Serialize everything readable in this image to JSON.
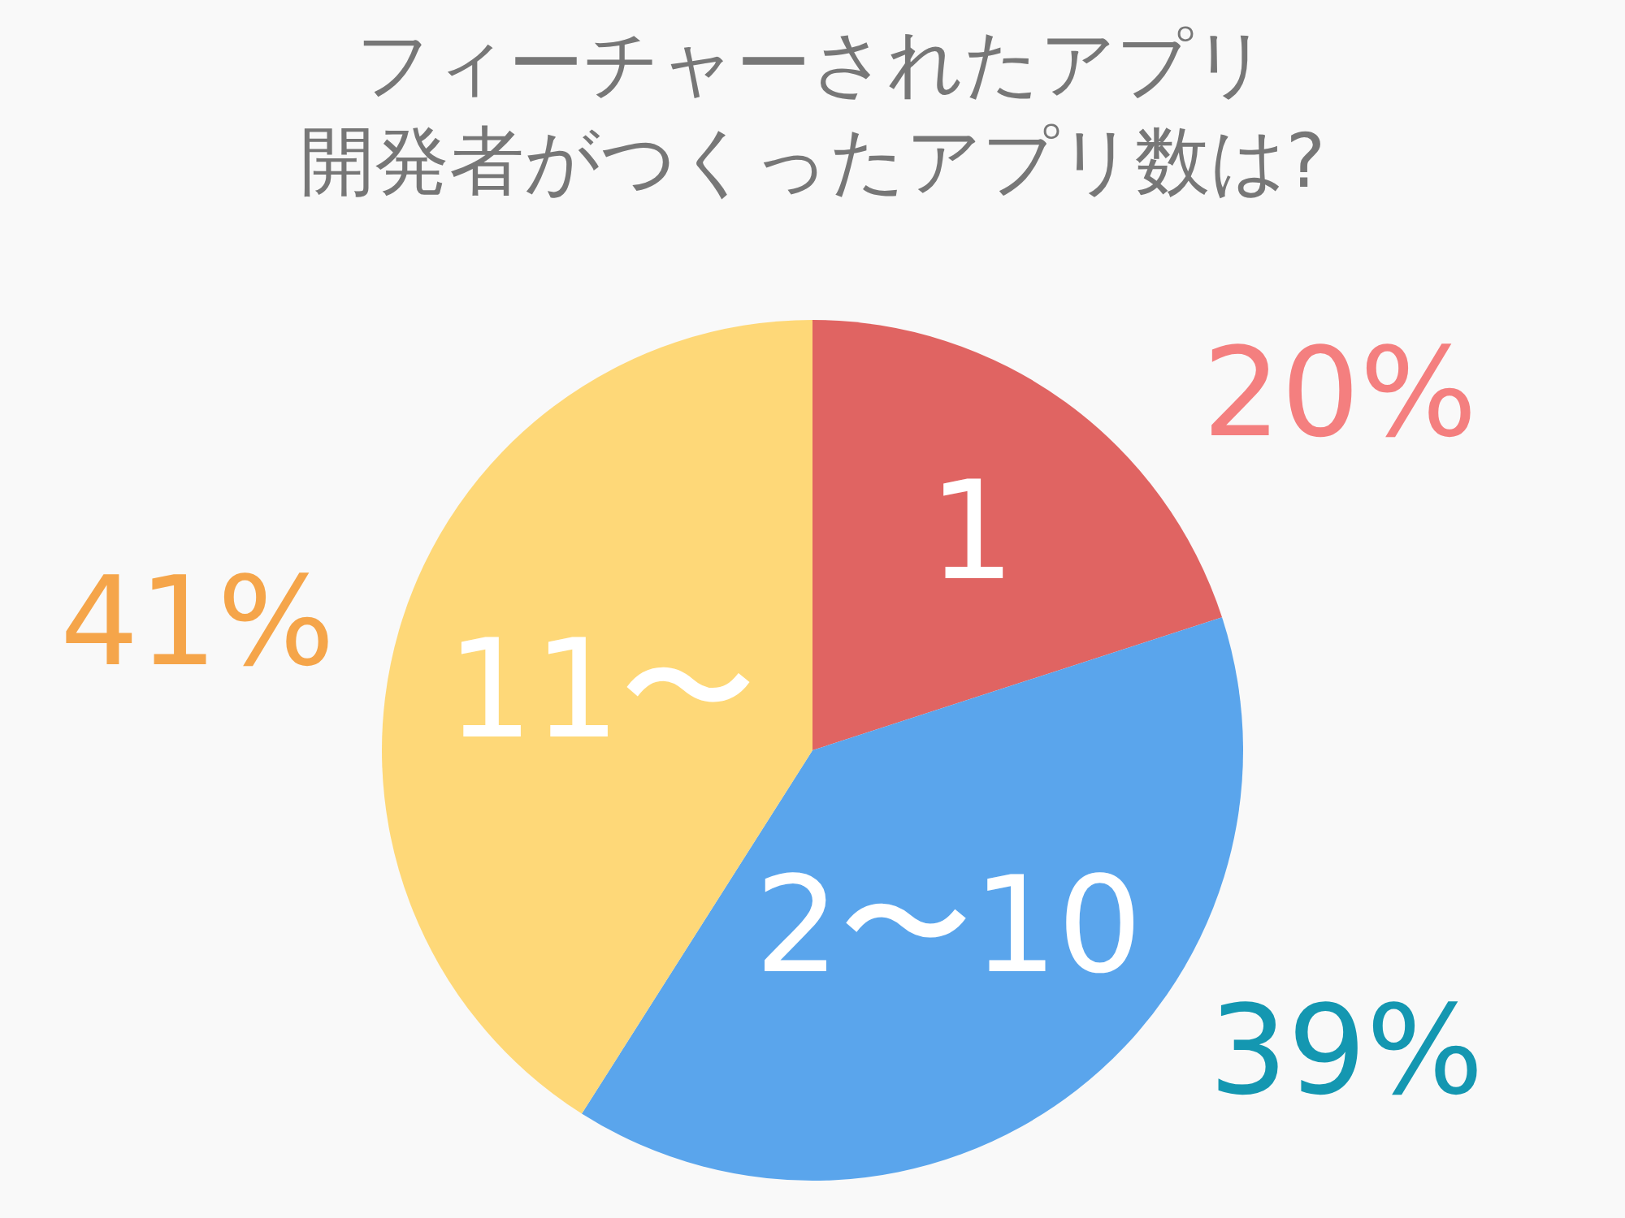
{
  "chart_data": {
    "type": "pie",
    "title": "フィーチャーされたアプリ開発者がつくったアプリ数は?",
    "categories": [
      "1",
      "2〜10",
      "11〜"
    ],
    "values": [
      20,
      39,
      41
    ],
    "colors": [
      "#e06462",
      "#5aa5ec",
      "#fed878"
    ],
    "value_labels": [
      "20%",
      "39%",
      "41%"
    ]
  }
}
